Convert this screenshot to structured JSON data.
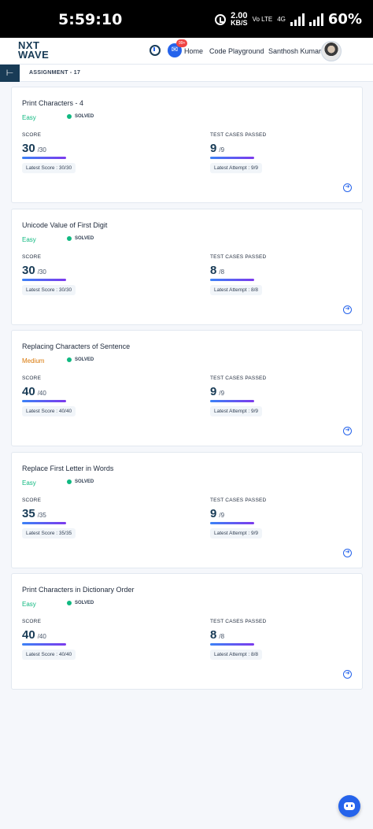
{
  "status_bar": {
    "time": "5:59:10",
    "net_speed": "2.00",
    "net_unit": "KB/S",
    "volte": "Vo LTE",
    "sim": "4G",
    "battery": "60%"
  },
  "navbar": {
    "logo_line1": "NXT",
    "logo_line2": "WAVE",
    "notification_badge": "99+",
    "home": "Home",
    "code_playground": "Code Playground",
    "user_name": "Santhosh Kumar"
  },
  "subheader": {
    "title": "ASSIGNMENT - 17"
  },
  "colors": {
    "easy": "#10b981",
    "medium": "#d97706",
    "accent": "#2563eb",
    "brand": "#183b56"
  },
  "cards": [
    {
      "title": "Print Characters - 4",
      "difficulty": "Easy",
      "difficulty_level": "easy",
      "status": "SOLVED",
      "score_label": "SCORE",
      "score": "30",
      "score_max": "/30",
      "score_fraction": 1.0,
      "latest_score": "Latest Score : 30/30",
      "tests_label": "TEST CASES PASSED",
      "tests": "9",
      "tests_max": "/9",
      "tests_fraction": 1.0,
      "latest_attempt": "Latest Attempt : 9/9"
    },
    {
      "title": "Unicode Value of First Digit",
      "difficulty": "Easy",
      "difficulty_level": "easy",
      "status": "SOLVED",
      "score_label": "SCORE",
      "score": "30",
      "score_max": "/30",
      "score_fraction": 1.0,
      "latest_score": "Latest Score : 30/30",
      "tests_label": "TEST CASES PASSED",
      "tests": "8",
      "tests_max": "/8",
      "tests_fraction": 1.0,
      "latest_attempt": "Latest Attempt : 8/8"
    },
    {
      "title": "Replacing Characters of Sentence",
      "difficulty": "Medium",
      "difficulty_level": "medium",
      "status": "SOLVED",
      "score_label": "SCORE",
      "score": "40",
      "score_max": "/40",
      "score_fraction": 1.0,
      "latest_score": "Latest Score : 40/40",
      "tests_label": "TEST CASES PASSED",
      "tests": "9",
      "tests_max": "/9",
      "tests_fraction": 1.0,
      "latest_attempt": "Latest Attempt : 9/9"
    },
    {
      "title": "Replace First Letter in Words",
      "difficulty": "Easy",
      "difficulty_level": "easy",
      "status": "SOLVED",
      "score_label": "SCORE",
      "score": "35",
      "score_max": "/35",
      "score_fraction": 1.0,
      "latest_score": "Latest Score : 35/35",
      "tests_label": "TEST CASES PASSED",
      "tests": "9",
      "tests_max": "/9",
      "tests_fraction": 1.0,
      "latest_attempt": "Latest Attempt : 9/9"
    },
    {
      "title": "Print Characters in Dictionary Order",
      "difficulty": "Easy",
      "difficulty_level": "easy",
      "status": "SOLVED",
      "score_label": "SCORE",
      "score": "40",
      "score_max": "/40",
      "score_fraction": 1.0,
      "latest_score": "Latest Score : 40/40",
      "tests_label": "TEST CASES PASSED",
      "tests": "8",
      "tests_max": "/8",
      "tests_fraction": 1.0,
      "latest_attempt": "Latest Attempt : 8/8"
    }
  ]
}
